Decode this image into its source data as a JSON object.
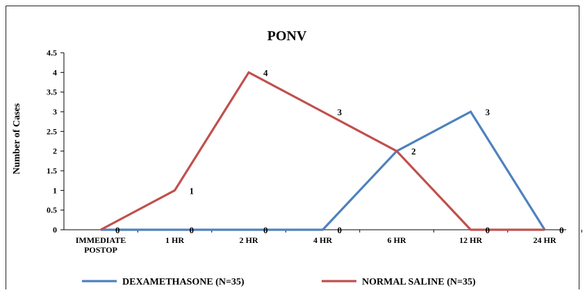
{
  "chart_data": {
    "type": "line",
    "title": "PONV",
    "xlabel": "",
    "ylabel": "Number of Cases",
    "categories": [
      "IMMEDIATE POSTOP",
      "1 HR",
      "2 HR",
      "4 HR",
      "6 HR",
      "12 HR",
      "24 HR"
    ],
    "ylim": [
      0,
      4.5
    ],
    "yticks": [
      "0",
      "0.5",
      "1",
      "1.5",
      "2",
      "2.5",
      "3",
      "3.5",
      "4",
      "4.5"
    ],
    "grid": false,
    "legend_position": "bottom",
    "series": [
      {
        "name": "DEXAMETHASONE (N=35)",
        "color": "#4f81bd",
        "values": [
          0,
          0,
          0,
          0,
          2,
          3,
          0
        ],
        "labels": [
          "0",
          "0",
          "0",
          "0",
          "",
          "3",
          "0"
        ]
      },
      {
        "name": "NORMAL SALINE (N=35)",
        "color": "#c0504d",
        "values": [
          0,
          1,
          4,
          3,
          2,
          0,
          0
        ],
        "labels": [
          "",
          "1",
          "4",
          "3",
          "2",
          "0",
          ""
        ]
      }
    ]
  }
}
